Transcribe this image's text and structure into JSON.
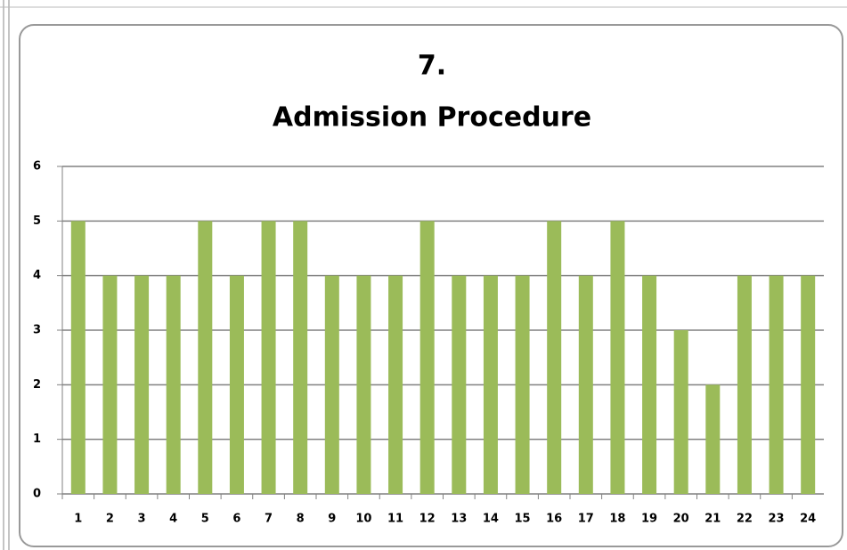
{
  "chart_data": {
    "type": "bar",
    "title": "7.",
    "subtitle": "Admission Procedure",
    "categories": [
      1,
      2,
      3,
      4,
      5,
      6,
      7,
      8,
      9,
      10,
      11,
      12,
      13,
      14,
      15,
      16,
      17,
      18,
      19,
      20,
      21,
      22,
      23,
      24
    ],
    "values": [
      5,
      4,
      4,
      4,
      5,
      4,
      5,
      5,
      4,
      4,
      4,
      5,
      4,
      4,
      4,
      5,
      4,
      5,
      4,
      3,
      2,
      4,
      4,
      4
    ],
    "color": "#9bbb59",
    "ylim": [
      0,
      6
    ],
    "yticks": [
      0,
      1,
      2,
      3,
      4,
      5,
      6
    ],
    "grid": true
  }
}
